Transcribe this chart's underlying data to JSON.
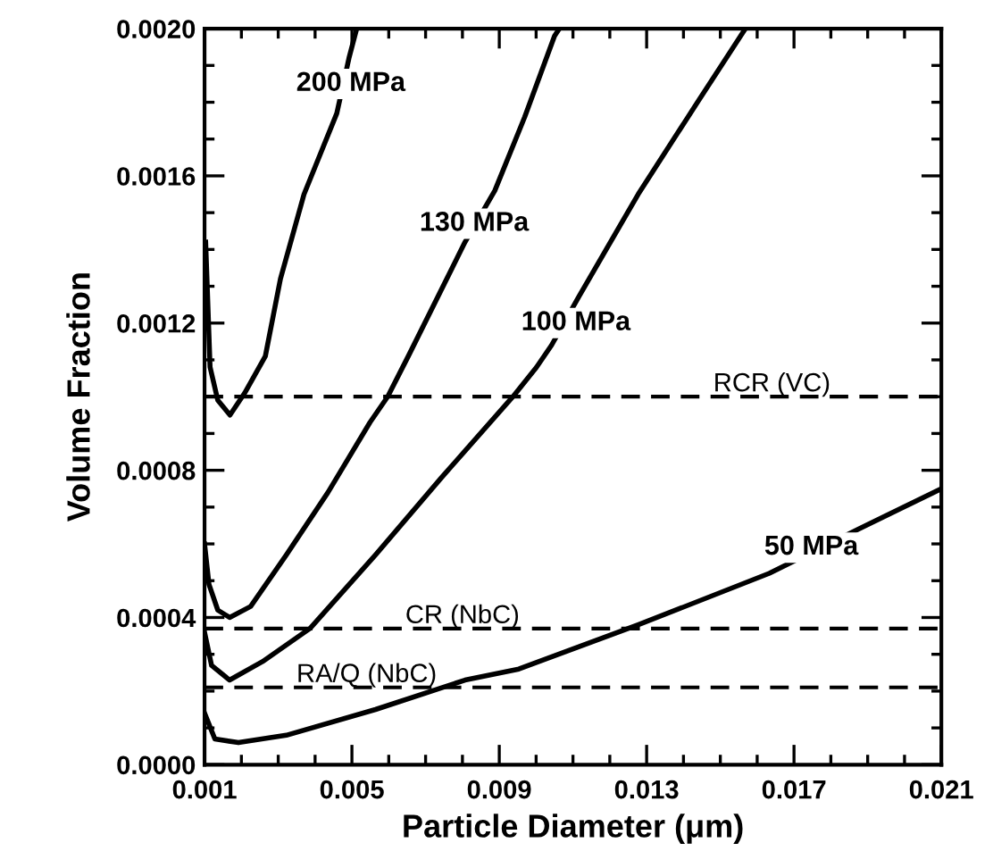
{
  "chart_data": {
    "type": "line",
    "xlabel": "Particle Diameter (μm)",
    "ylabel": "Volume Fraction",
    "series": [
      {
        "color": "#000000",
        "x": [
          0.00103,
          0.00115,
          0.00136,
          0.00169,
          0.00209,
          0.00265,
          0.00306,
          0.0037,
          0.00459,
          0.00492,
          0.00513
        ],
        "values": [
          0.00142,
          0.00108,
          0.00099,
          0.00095,
          0.00101,
          0.00111,
          0.00132,
          0.00155,
          0.00177,
          0.00192,
          0.002
        ]
      },
      {
        "color": "#000000",
        "x": [
          0.001,
          0.00112,
          0.00136,
          0.00168,
          0.00225,
          0.00322,
          0.00435,
          0.00549,
          0.00597,
          0.00653,
          0.00807,
          0.00888,
          0.00969,
          0.0105,
          0.01063
        ],
        "values": [
          0.0006,
          0.00049,
          0.00042,
          0.0004,
          0.00043,
          0.00057,
          0.00074,
          0.00093,
          0.001,
          0.00111,
          0.00142,
          0.00156,
          0.00176,
          0.00198,
          0.002
        ]
      },
      {
        "color": "#000000",
        "x": [
          0.001,
          0.00119,
          0.00168,
          0.00257,
          0.00386,
          0.00564,
          0.00743,
          0.00937,
          0.01001,
          0.01042,
          0.01115,
          0.01277,
          0.01438,
          0.01568
        ],
        "values": [
          0.00036,
          0.00027,
          0.00023,
          0.00028,
          0.00037,
          0.00057,
          0.00078,
          0.001,
          0.00108,
          0.00114,
          0.00127,
          0.00155,
          0.0018,
          0.002
        ]
      },
      {
        "color": "#000000",
        "x": [
          0.001,
          0.00128,
          0.00192,
          0.00322,
          0.00564,
          0.00807,
          0.00953,
          0.01277,
          0.01633,
          0.01875,
          0.021
        ],
        "values": [
          0.00014,
          7e-05,
          6e-05,
          8e-05,
          0.00015,
          0.00023,
          0.00026,
          0.00038,
          0.00052,
          0.00064,
          0.00075
        ]
      }
    ],
    "annotations": [
      {
        "text": "200 MPa",
        "x": 0.00497,
        "y": 0.00185
      },
      {
        "text": "130 MPa",
        "x": 0.00832,
        "y": 0.00147
      },
      {
        "text": "100 MPa",
        "x": 0.01108,
        "y": 0.0012
      },
      {
        "text": "50 MPa",
        "x": 0.01747,
        "y": 0.00059
      }
    ],
    "ref_lines": [
      {
        "axis": "y",
        "value": 0.001,
        "label": "RCR (VC)",
        "color": "#000000",
        "line_style": "dashed"
      },
      {
        "axis": "y",
        "value": 0.00037,
        "label": "CR (NbC)",
        "color": "#000000",
        "line_style": "dashed"
      },
      {
        "axis": "y",
        "value": 0.00021,
        "label": "RA/Q (NbC)",
        "color": "#000000",
        "line_style": "dashed"
      }
    ],
    "xlim": [
      0.001,
      0.021
    ],
    "xticks": [
      0.001,
      0.005,
      0.009,
      0.013,
      0.017,
      0.021
    ],
    "ylim": [
      0,
      0.002
    ],
    "yticks": [
      {
        "value": 0,
        "label": "0.0000"
      },
      {
        "value": 0.0004,
        "label": "0.0004"
      },
      {
        "value": 0.0008,
        "label": "0.0008"
      },
      {
        "value": 0.0012,
        "label": "0.0012"
      },
      {
        "value": 0.0016,
        "label": "0.0016"
      },
      {
        "value": 0.002,
        "label": "0.0020"
      }
    ],
    "grid": false,
    "legend": false,
    "marker": "none",
    "line_style": "solid"
  }
}
